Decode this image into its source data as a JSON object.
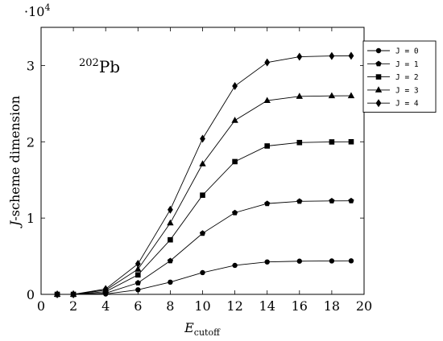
{
  "chart_data": {
    "type": "line",
    "title": "",
    "annotation": {
      "mass_number": "202",
      "element": "Pb"
    },
    "xlabel": {
      "main": "E",
      "subscript": "cutoff"
    },
    "ylabel": {
      "italic": "J",
      "rest": "-scheme dimension"
    },
    "y_multiplier": {
      "base": "·10",
      "exponent": "4"
    },
    "xlim": [
      0,
      20
    ],
    "ylim": [
      0,
      35000
    ],
    "x_ticks": [
      0,
      2,
      4,
      6,
      8,
      10,
      12,
      14,
      16,
      18,
      20
    ],
    "y_ticks": [
      0,
      10000,
      20000,
      30000
    ],
    "y_tick_labels": [
      "0",
      "1",
      "2",
      "3"
    ],
    "grid": false,
    "legend_position": "right",
    "x": [
      1,
      2,
      4,
      6,
      8,
      10,
      12,
      14,
      16,
      18,
      19.2
    ],
    "series": [
      {
        "name": "J = 0",
        "marker": "circle",
        "values": [
          0,
          0,
          50,
          600,
          1600,
          2850,
          3800,
          4250,
          4350,
          4380,
          4390
        ]
      },
      {
        "name": "J = 1",
        "marker": "pentagon",
        "values": [
          0,
          0,
          150,
          1500,
          4400,
          8000,
          10700,
          11900,
          12200,
          12250,
          12260
        ]
      },
      {
        "name": "J = 2",
        "marker": "square",
        "values": [
          0,
          0,
          350,
          2550,
          7150,
          13000,
          17400,
          19450,
          19900,
          19980,
          20000
        ]
      },
      {
        "name": "J = 3",
        "marker": "triangle",
        "values": [
          0,
          0,
          550,
          3300,
          9350,
          17100,
          22800,
          25400,
          25950,
          26020,
          26030
        ]
      },
      {
        "name": "J = 4",
        "marker": "diamond",
        "values": [
          0,
          0,
          700,
          4000,
          11100,
          20400,
          27300,
          30400,
          31150,
          31250,
          31270
        ]
      }
    ]
  }
}
